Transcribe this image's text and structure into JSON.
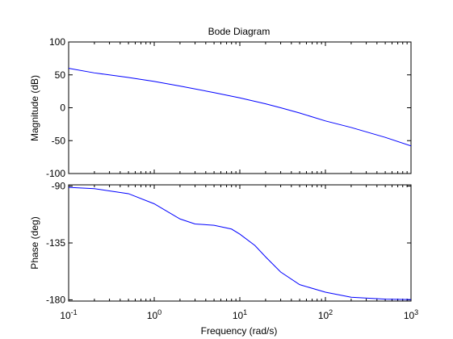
{
  "chart_data": {
    "type": "line",
    "title": "Bode Diagram",
    "xlabel": "Frequency  (rad/s)",
    "xscale": "log",
    "xlim": [
      0.1,
      1000
    ],
    "x_tick_labels": [
      {
        "base": "10",
        "exp": "-1"
      },
      {
        "base": "10",
        "exp": "0"
      },
      {
        "base": "10",
        "exp": "1"
      },
      {
        "base": "10",
        "exp": "2"
      },
      {
        "base": "10",
        "exp": "3"
      }
    ],
    "x_ticks": [
      0.1,
      1,
      10,
      100,
      1000
    ],
    "grid": false,
    "line_color": "#0000ff",
    "panels": [
      {
        "name": "magnitude",
        "ylabel": "Magnitude (dB)",
        "ylim": [
          -100,
          100
        ],
        "y_ticks": [
          100,
          50,
          0,
          -50,
          -100
        ],
        "y_tick_labels": [
          "100",
          "50",
          "0",
          "-50",
          "-100"
        ],
        "series": [
          {
            "x": [
              0.1,
              0.2,
              0.5,
              1,
              2,
              5,
              10,
              20,
              30,
              50,
              100,
              200,
              500,
              1000
            ],
            "values": [
              60,
              53,
              46,
              40,
              33,
              23,
              15,
              6,
              0,
              -8,
              -20,
              -30,
              -45,
              -58
            ]
          }
        ]
      },
      {
        "name": "phase",
        "ylabel": "Phase (deg)",
        "ylim": [
          -181,
          -89
        ],
        "y_ticks": [
          -90,
          -135,
          -180
        ],
        "y_tick_labels": [
          "-90",
          "-135",
          "-180"
        ],
        "series": [
          {
            "x": [
              0.1,
              0.2,
              0.5,
              1,
              2,
              3,
              5,
              8,
              10,
              15,
              20,
              30,
              50,
              100,
              200,
              500,
              1000
            ],
            "values": [
              -91,
              -92,
              -96,
              -104,
              -116,
              -120,
              -121,
              -124,
              -128,
              -137,
              -146,
              -158,
              -168,
              -174,
              -178,
              -179.5,
              -179.8
            ]
          }
        ]
      }
    ]
  }
}
